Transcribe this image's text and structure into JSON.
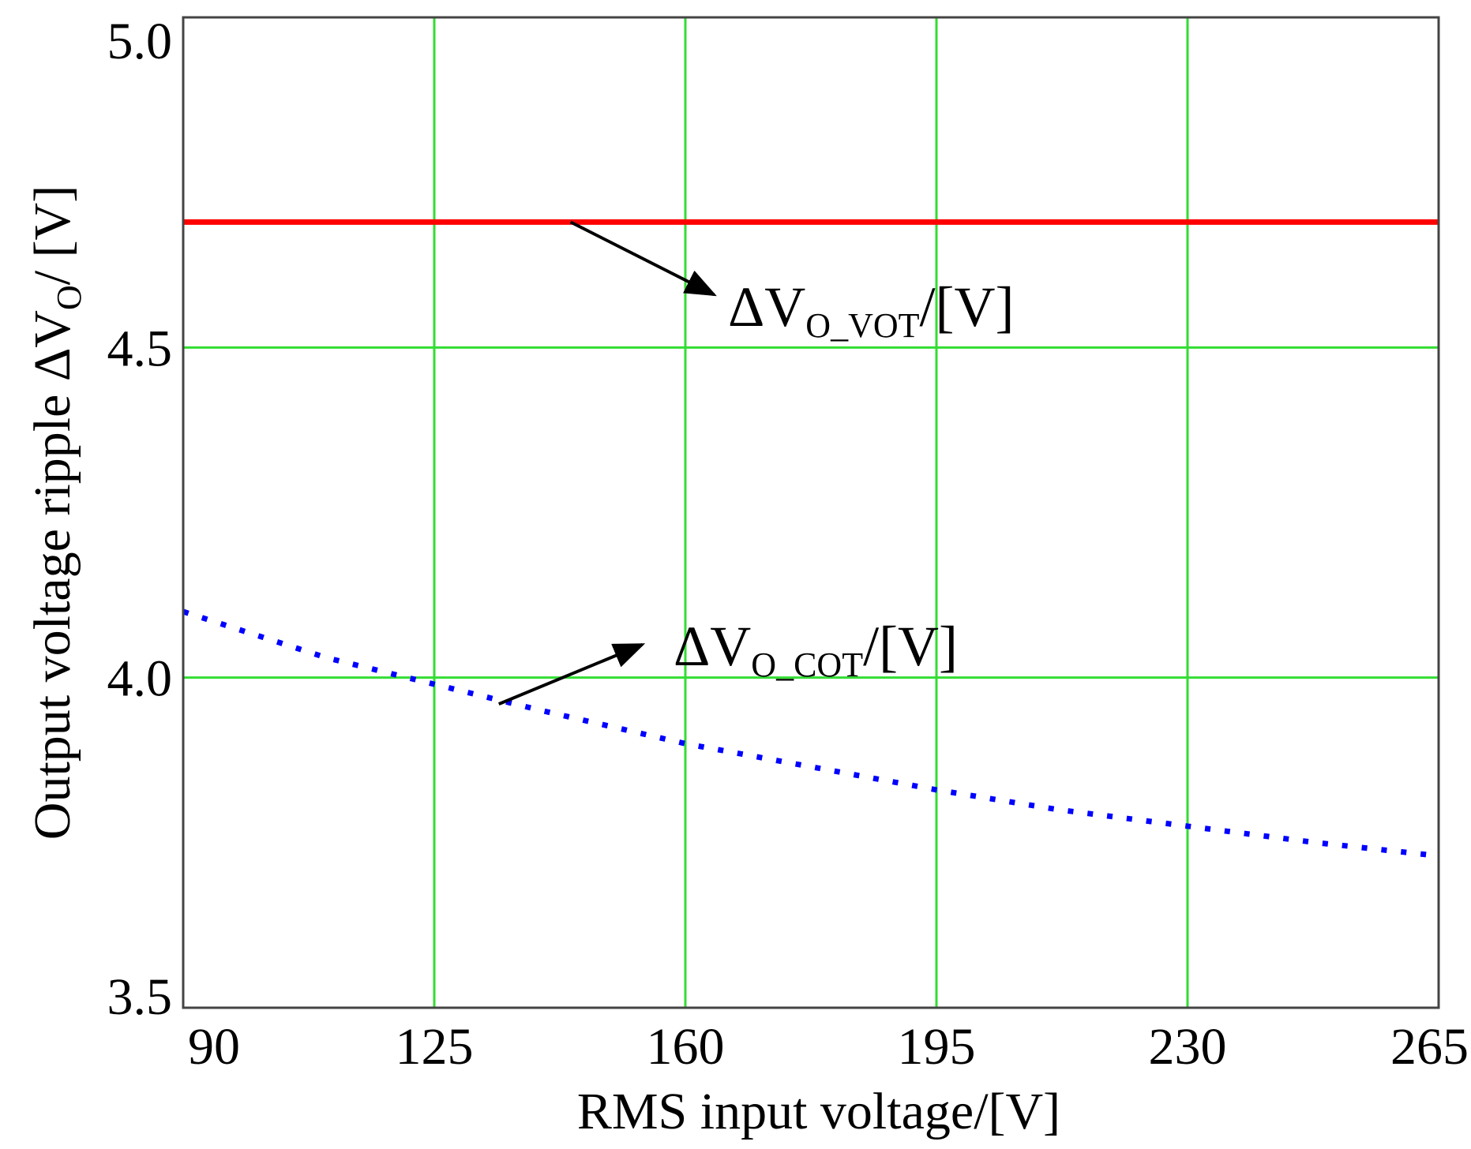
{
  "chart_data": {
    "type": "line",
    "title": "",
    "xlabel": "RMS input voltage/[V]",
    "ylabel_parts": {
      "text": "Output voltage ripple ΔV",
      "subscript": "O",
      "suffix": "/ [V]"
    },
    "x_ticks": [
      90,
      125,
      160,
      195,
      230,
      265
    ],
    "y_ticks": [
      "3.5",
      "4.0",
      "4.5",
      "5.0"
    ],
    "xlim": [
      90,
      265
    ],
    "ylim": [
      3.5,
      5.0
    ],
    "grid": true,
    "series": [
      {
        "name": "ΔV_O_VOT",
        "label_main": "ΔV",
        "label_sub": "O_VOT",
        "label_suffix": "/[V]",
        "style": "solid",
        "color": "#ff0000",
        "x": [
          90,
          265
        ],
        "y": [
          4.69,
          4.69
        ]
      },
      {
        "name": "ΔV_O_COT",
        "label_main": "ΔV",
        "label_sub": "O_COT",
        "label_suffix": "/[V]",
        "style": "dotted",
        "color": "#0000ff",
        "x": [
          90,
          110,
          125,
          140,
          160,
          180,
          195,
          212,
          230,
          248,
          265
        ],
        "y": [
          4.1,
          4.03,
          3.99,
          3.95,
          3.9,
          3.86,
          3.83,
          3.8,
          3.775,
          3.75,
          3.73
        ]
      }
    ],
    "annotations": [
      {
        "series": "ΔV_O_VOT",
        "arrow_from": [
          144,
          4.69
        ],
        "arrow_to": [
          164,
          4.58
        ]
      },
      {
        "series": "ΔV_O_COT",
        "arrow_from": [
          134,
          3.96
        ],
        "arrow_to": [
          154,
          4.05
        ]
      }
    ]
  },
  "colors": {
    "grid": "#33dd33",
    "frame": "#444444",
    "vot_line": "#ff0000",
    "cot_line": "#0000ff",
    "arrow": "#000000"
  }
}
